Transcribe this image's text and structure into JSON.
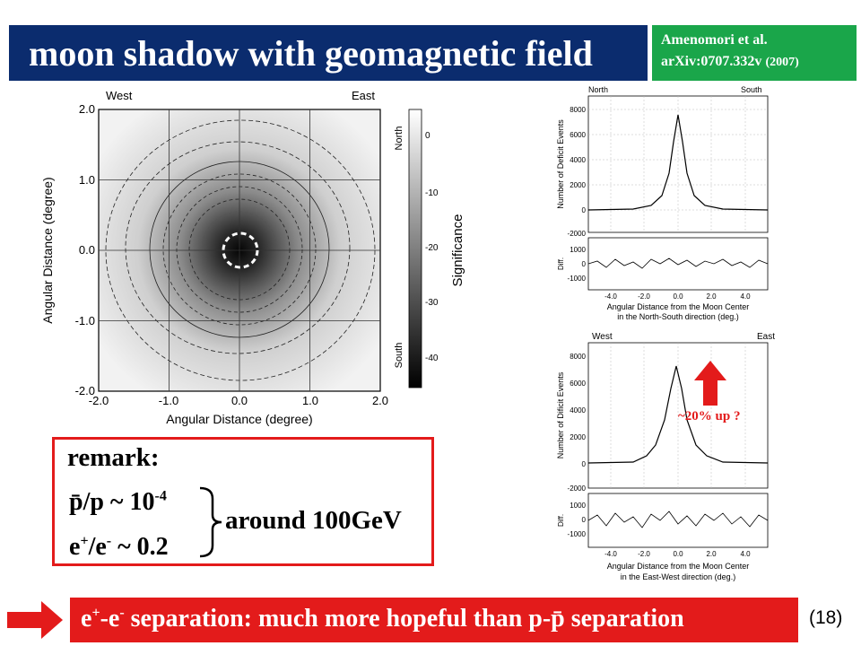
{
  "slide": {
    "title": "moon shadow with geomagnetic field",
    "citation": {
      "line1": "Amenomori et al.",
      "line2a": "arXiv:0707.332v ",
      "line2b": "(2007)"
    },
    "page_number": "(18)",
    "bottom": {
      "a": "e",
      "a_sup": "+",
      "b": "-e",
      "b_sup": "-",
      "c": " separation: much more hopeful  than p-p̄ separation"
    },
    "remark": {
      "label": "remark:",
      "r1_text": "p̄/p  ~  10",
      "r1_sup": "-4",
      "r2_a": "e",
      "r2_sup1": "+",
      "r2_b": "/e",
      "r2_sup2": "-",
      "r2_c": "  ~  0.2",
      "around": "around 100GeV"
    },
    "annotation": "~20% up ?",
    "colors": {
      "title_bg": "#0b2c6e",
      "cite_bg": "#1aa64a",
      "accent_red": "#e31b1b"
    }
  },
  "figures": {
    "main": {
      "labels": {
        "west": "West",
        "east": "East",
        "north": "North",
        "south": "South"
      },
      "xlabel": "Angular Distance (degree)",
      "ylabel": "Angular Distance (degree)",
      "colorbar_label": "Significance",
      "x_ticks": [
        "-2.0",
        "-1.0",
        "0.0",
        "1.0",
        "2.0"
      ],
      "y_ticks": [
        "2.0",
        "1.0",
        "0.0",
        "-1.0",
        "-2.0"
      ],
      "cb_ticks": [
        "0",
        "-10",
        "-20",
        "-30",
        "-40"
      ]
    },
    "ns": {
      "top_left": "North",
      "top_right": "South",
      "ylabel": "Number of Deficit Events",
      "diff_label": "Diff.",
      "xlabel1": "Angular Distance from the Moon Center",
      "xlabel2": "in the North-South direction (deg.)",
      "y_ticks": [
        "8000",
        "6000",
        "4000",
        "2000",
        "0",
        "-2000"
      ],
      "diff_ticks": [
        "1000",
        "0",
        "-1000"
      ],
      "x_ticks": [
        "-4.0",
        "-2.0",
        "0.0",
        "2.0",
        "4.0"
      ]
    },
    "ew": {
      "top_left": "West",
      "top_right": "East",
      "ylabel": "Number of Dificit Events",
      "diff_label": "Diff.",
      "xlabel1": "Angular Distance from the Moon Center",
      "xlabel2": "in the East-West direction (deg.)",
      "y_ticks": [
        "8000",
        "6000",
        "4000",
        "2000",
        "0",
        "-2000"
      ],
      "diff_ticks": [
        "1000",
        "0",
        "-1000"
      ],
      "x_ticks": [
        "-4.0",
        "-2.0",
        "0.0",
        "2.0",
        "4.0"
      ]
    }
  }
}
